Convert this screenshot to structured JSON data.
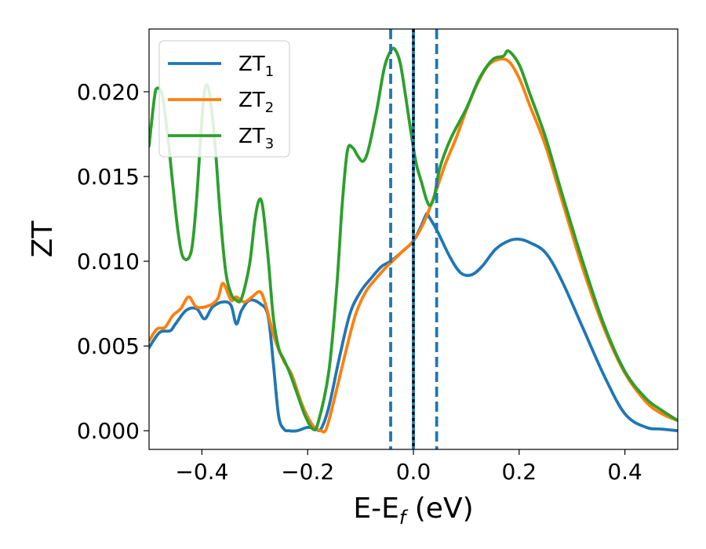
{
  "chart_data": {
    "type": "line",
    "xlabel": "E-E_f (eV)",
    "xlabel_main": "E-E",
    "xlabel_sub": "f",
    "xlabel_unit": " (eV)",
    "ylabel": "ZT",
    "xlim": [
      -0.5,
      0.5
    ],
    "ylim": [
      -0.0011,
      0.0237
    ],
    "x_ticks": [
      -0.4,
      -0.2,
      0.0,
      0.2,
      0.4
    ],
    "x_tick_labels": [
      "−0.4",
      "−0.2",
      "0.0",
      "0.2",
      "0.4"
    ],
    "y_ticks": [
      0.0,
      0.005,
      0.01,
      0.015,
      0.02
    ],
    "y_tick_labels": [
      "0.000",
      "0.005",
      "0.010",
      "0.015",
      "0.020"
    ],
    "grid": false,
    "legend_position": "top-left",
    "vertical_lines": [
      {
        "x": -0.043,
        "style": "dashed",
        "color": "#1f77b4"
      },
      {
        "x": 0.0,
        "style": "solid",
        "color": "#1f77b4"
      },
      {
        "x": 0.0,
        "style": "dotted",
        "color": "#000000"
      },
      {
        "x": 0.044,
        "style": "dashed",
        "color": "#1f77b4"
      }
    ],
    "series": [
      {
        "name": "ZT_1",
        "label_main": "ZT",
        "label_sub": "1",
        "color": "#1f77b4",
        "x": [
          -0.5,
          -0.48,
          -0.46,
          -0.45,
          -0.43,
          -0.41,
          -0.395,
          -0.38,
          -0.36,
          -0.345,
          -0.335,
          -0.325,
          -0.31,
          -0.29,
          -0.275,
          -0.265,
          -0.255,
          -0.245,
          -0.235,
          -0.22,
          -0.2,
          -0.185,
          -0.175,
          -0.16,
          -0.14,
          -0.12,
          -0.1,
          -0.08,
          -0.06,
          -0.043,
          -0.02,
          0.0,
          0.015,
          0.025,
          0.03,
          0.045,
          0.07,
          0.09,
          0.11,
          0.13,
          0.155,
          0.18,
          0.2,
          0.22,
          0.25,
          0.28,
          0.32,
          0.36,
          0.4,
          0.44,
          0.47,
          0.5
        ],
        "y": [
          0.0049,
          0.0058,
          0.0059,
          0.0063,
          0.0071,
          0.0072,
          0.0066,
          0.0073,
          0.0076,
          0.0074,
          0.0063,
          0.0071,
          0.0077,
          0.0075,
          0.0068,
          0.004,
          0.0009,
          0.0001,
          0.0,
          0.0,
          0.0002,
          0.0001,
          0.0001,
          0.0014,
          0.0043,
          0.0069,
          0.0082,
          0.009,
          0.0097,
          0.01,
          0.0106,
          0.0112,
          0.0121,
          0.0128,
          0.0126,
          0.0118,
          0.0102,
          0.0093,
          0.0092,
          0.0097,
          0.0107,
          0.0112,
          0.0113,
          0.0111,
          0.0105,
          0.0089,
          0.0061,
          0.0033,
          0.001,
          0.0002,
          0.0001,
          0.0
        ]
      },
      {
        "name": "ZT_2",
        "label_main": "ZT",
        "label_sub": "2",
        "color": "#ff7f0e",
        "x": [
          -0.5,
          -0.485,
          -0.47,
          -0.455,
          -0.44,
          -0.425,
          -0.41,
          -0.385,
          -0.37,
          -0.36,
          -0.345,
          -0.335,
          -0.32,
          -0.305,
          -0.29,
          -0.28,
          -0.27,
          -0.26,
          -0.245,
          -0.23,
          -0.21,
          -0.19,
          -0.175,
          -0.165,
          -0.15,
          -0.13,
          -0.11,
          -0.09,
          -0.07,
          -0.05,
          -0.043,
          -0.02,
          0.0,
          0.02,
          0.04,
          0.06,
          0.08,
          0.1,
          0.12,
          0.14,
          0.16,
          0.18,
          0.2,
          0.22,
          0.25,
          0.28,
          0.32,
          0.36,
          0.4,
          0.44,
          0.47,
          0.5
        ],
        "y": [
          0.0053,
          0.006,
          0.0061,
          0.0068,
          0.0072,
          0.0079,
          0.0073,
          0.0074,
          0.0078,
          0.0087,
          0.0077,
          0.0079,
          0.0076,
          0.0079,
          0.0082,
          0.0075,
          0.0063,
          0.0052,
          0.0041,
          0.0033,
          0.0015,
          0.0003,
          0.0,
          0.0001,
          0.0018,
          0.0044,
          0.0068,
          0.0082,
          0.009,
          0.0097,
          0.0099,
          0.0106,
          0.0112,
          0.0123,
          0.0139,
          0.0157,
          0.0172,
          0.0189,
          0.0204,
          0.0215,
          0.0219,
          0.0218,
          0.0208,
          0.0192,
          0.0168,
          0.0137,
          0.0096,
          0.0061,
          0.0034,
          0.0017,
          0.001,
          0.0006
        ]
      },
      {
        "name": "ZT_3",
        "label_main": "ZT",
        "label_sub": "3",
        "color": "#2ca02c",
        "x": [
          -0.5,
          -0.49,
          -0.485,
          -0.475,
          -0.465,
          -0.455,
          -0.445,
          -0.435,
          -0.42,
          -0.41,
          -0.4,
          -0.393,
          -0.385,
          -0.375,
          -0.365,
          -0.355,
          -0.345,
          -0.335,
          -0.325,
          -0.31,
          -0.3,
          -0.292,
          -0.285,
          -0.275,
          -0.265,
          -0.255,
          -0.245,
          -0.235,
          -0.22,
          -0.205,
          -0.19,
          -0.18,
          -0.16,
          -0.145,
          -0.135,
          -0.125,
          -0.115,
          -0.105,
          -0.095,
          -0.085,
          -0.07,
          -0.055,
          -0.043,
          -0.035,
          -0.025,
          -0.015,
          -0.005,
          0.005,
          0.015,
          0.025,
          0.032,
          0.04,
          0.05,
          0.07,
          0.1,
          0.125,
          0.15,
          0.17,
          0.18,
          0.2,
          0.22,
          0.25,
          0.28,
          0.32,
          0.36,
          0.4,
          0.44,
          0.47,
          0.5
        ],
        "y": [
          0.0168,
          0.0196,
          0.0202,
          0.0198,
          0.0175,
          0.0145,
          0.0117,
          0.0102,
          0.0106,
          0.0137,
          0.0184,
          0.0203,
          0.0198,
          0.0168,
          0.0126,
          0.0094,
          0.0081,
          0.0077,
          0.0078,
          0.0098,
          0.0124,
          0.0136,
          0.0132,
          0.0103,
          0.0067,
          0.0049,
          0.0042,
          0.0035,
          0.0022,
          0.0009,
          0.0001,
          0.0005,
          0.0035,
          0.0085,
          0.0132,
          0.0165,
          0.0167,
          0.0162,
          0.0159,
          0.0166,
          0.0188,
          0.0214,
          0.0224,
          0.0225,
          0.0217,
          0.0198,
          0.0177,
          0.0158,
          0.0147,
          0.0136,
          0.0133,
          0.0139,
          0.0155,
          0.0172,
          0.019,
          0.0208,
          0.0219,
          0.0221,
          0.0224,
          0.0216,
          0.0199,
          0.0173,
          0.0141,
          0.01,
          0.0063,
          0.0035,
          0.0019,
          0.0012,
          0.0006
        ]
      }
    ]
  }
}
